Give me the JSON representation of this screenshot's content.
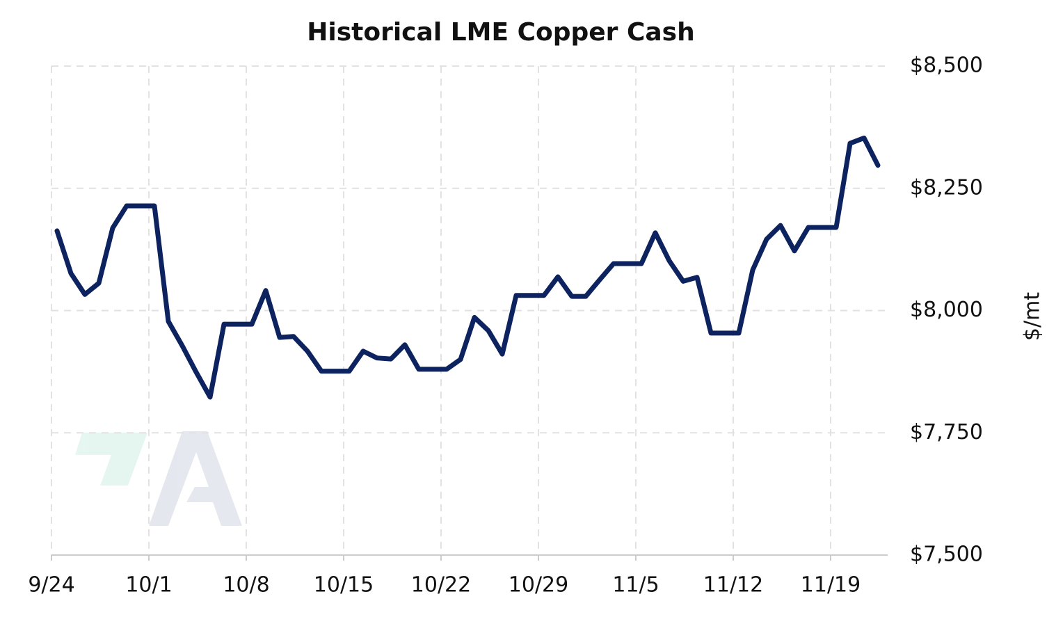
{
  "chart_data": {
    "type": "line",
    "title": "Historical LME Copper Cash",
    "y_label": "$/mt",
    "x": [
      "9/24",
      "9/25",
      "9/26",
      "9/27",
      "9/28",
      "9/29",
      "9/30",
      "10/1",
      "10/2",
      "10/3",
      "10/4",
      "10/5",
      "10/6",
      "10/7",
      "10/8",
      "10/9",
      "10/10",
      "10/11",
      "10/12",
      "10/13",
      "10/14",
      "10/15",
      "10/16",
      "10/17",
      "10/18",
      "10/19",
      "10/20",
      "10/21",
      "10/22",
      "10/23",
      "10/24",
      "10/25",
      "10/26",
      "10/27",
      "10/28",
      "10/29",
      "10/30",
      "10/31",
      "11/1",
      "11/2",
      "11/3",
      "11/4",
      "11/5",
      "11/6",
      "11/7",
      "11/8",
      "11/9",
      "11/10",
      "11/11",
      "11/12",
      "11/13",
      "11/14",
      "11/15",
      "11/16",
      "11/17",
      "11/18",
      "11/19",
      "11/20",
      "11/21",
      "11/22"
    ],
    "series": [
      {
        "name": "LME Copper Cash",
        "color": "#0d2360",
        "values": [
          8163,
          8076,
          8033,
          8056,
          8169,
          8214,
          8214,
          8214,
          7978,
          7928,
          7874,
          7823,
          7972,
          7972,
          7972,
          8041,
          7945,
          7947,
          7917,
          7876,
          7876,
          7876,
          7917,
          7903,
          7901,
          7930,
          7880,
          7880,
          7880,
          7900,
          7986,
          7959,
          7911,
          8031,
          8031,
          8031,
          8069,
          8029,
          8029,
          8063,
          8096,
          8096,
          8096,
          8159,
          8102,
          8060,
          8068,
          7954,
          7954,
          7954,
          8083,
          8146,
          8174,
          8122,
          8170,
          8170,
          8170,
          8342,
          8353,
          8297
        ]
      }
    ],
    "xticks": [
      "9/24",
      "10/1",
      "10/8",
      "10/15",
      "10/22",
      "10/29",
      "11/5",
      "11/12",
      "11/19"
    ],
    "ylim": [
      7500,
      8500
    ],
    "yticks": [
      {
        "value": 7500,
        "label": "$7,500"
      },
      {
        "value": 7750,
        "label": "$7,750"
      },
      {
        "value": 8000,
        "label": "$8,000"
      },
      {
        "value": 8250,
        "label": "$8,250"
      },
      {
        "value": 8500,
        "label": "$8,500"
      }
    ],
    "grid": true
  }
}
